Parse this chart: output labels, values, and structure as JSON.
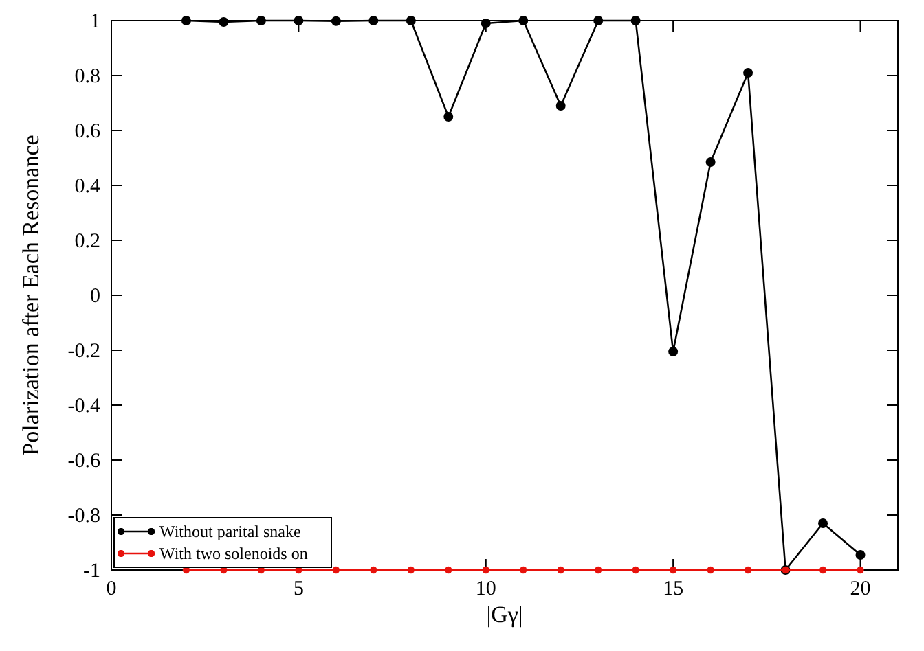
{
  "chart_data": {
    "type": "line",
    "xlabel": "|Gγ|",
    "ylabel": "Polarization after Each Resonance",
    "x": [
      2,
      3,
      4,
      5,
      6,
      7,
      8,
      9,
      10,
      11,
      12,
      13,
      14,
      15,
      16,
      17,
      18,
      19,
      20
    ],
    "series": [
      {
        "name": "Without parital snake",
        "color": "#000000",
        "values": [
          1,
          0.995,
          1,
          1,
          0.998,
          1,
          1,
          0.65,
          0.99,
          1,
          0.69,
          1,
          1,
          -0.205,
          0.485,
          0.81,
          -1,
          -0.83,
          -0.945
        ]
      },
      {
        "name": "With two solenoids on",
        "color": "#e8120c",
        "values": [
          -1,
          -1,
          -1,
          -1,
          -1,
          -1,
          -1,
          -1,
          -1,
          -1,
          -1,
          -1,
          -1,
          -1,
          -1,
          -1,
          -1,
          -1,
          -1
        ]
      }
    ],
    "xlim": [
      0,
      21
    ],
    "xticks": [
      0,
      5,
      10,
      15,
      20
    ],
    "ylim": [
      -1,
      1
    ],
    "yticks": [
      -1,
      -0.8,
      -0.6,
      -0.4,
      -0.2,
      0,
      0.2,
      0.4,
      0.6,
      0.8,
      1
    ],
    "marker": "circle",
    "line_style": "solid",
    "grid": false,
    "legend": "bottom left"
  }
}
